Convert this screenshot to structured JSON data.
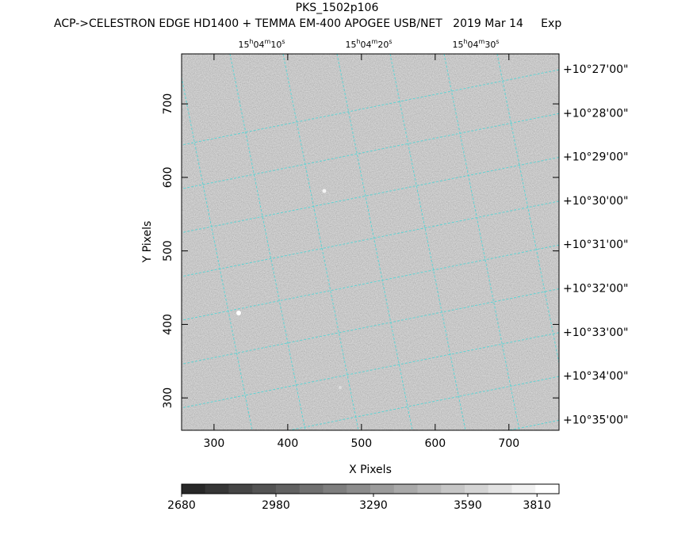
{
  "chart_data": {
    "type": "image",
    "title": "PKS_1502p106",
    "subtitle": "ACP->CELESTRON EDGE HD1400 + TEMMA EM-400 APOGEE USB/NET   2019 Mar 14     Exp",
    "xlabel": "X Pixels",
    "ylabel": "Y Pixels",
    "xlim": [
      256,
      768
    ],
    "ylim": [
      256,
      768
    ],
    "xticks": [
      300,
      400,
      500,
      600,
      700
    ],
    "yticks": [
      300,
      400,
      500,
      600,
      700
    ],
    "ra_labels": [
      "15h04m10s",
      "15h04m20s",
      "15h04m30s"
    ],
    "dec_labels": [
      "+10°27'00\"",
      "+10°28'00\"",
      "+10°29'00\"",
      "+10°30'00\"",
      "+10°31'00\"",
      "+10°32'00\"",
      "+10°33'00\"",
      "+10°34'00\"",
      "+10°35'00\""
    ],
    "grid": true,
    "grid_color": "#5fd3d3",
    "colorbar": {
      "lim": [
        2680,
        3880
      ],
      "ticks": [
        2680,
        2980,
        3290,
        3590,
        3810
      ]
    }
  }
}
